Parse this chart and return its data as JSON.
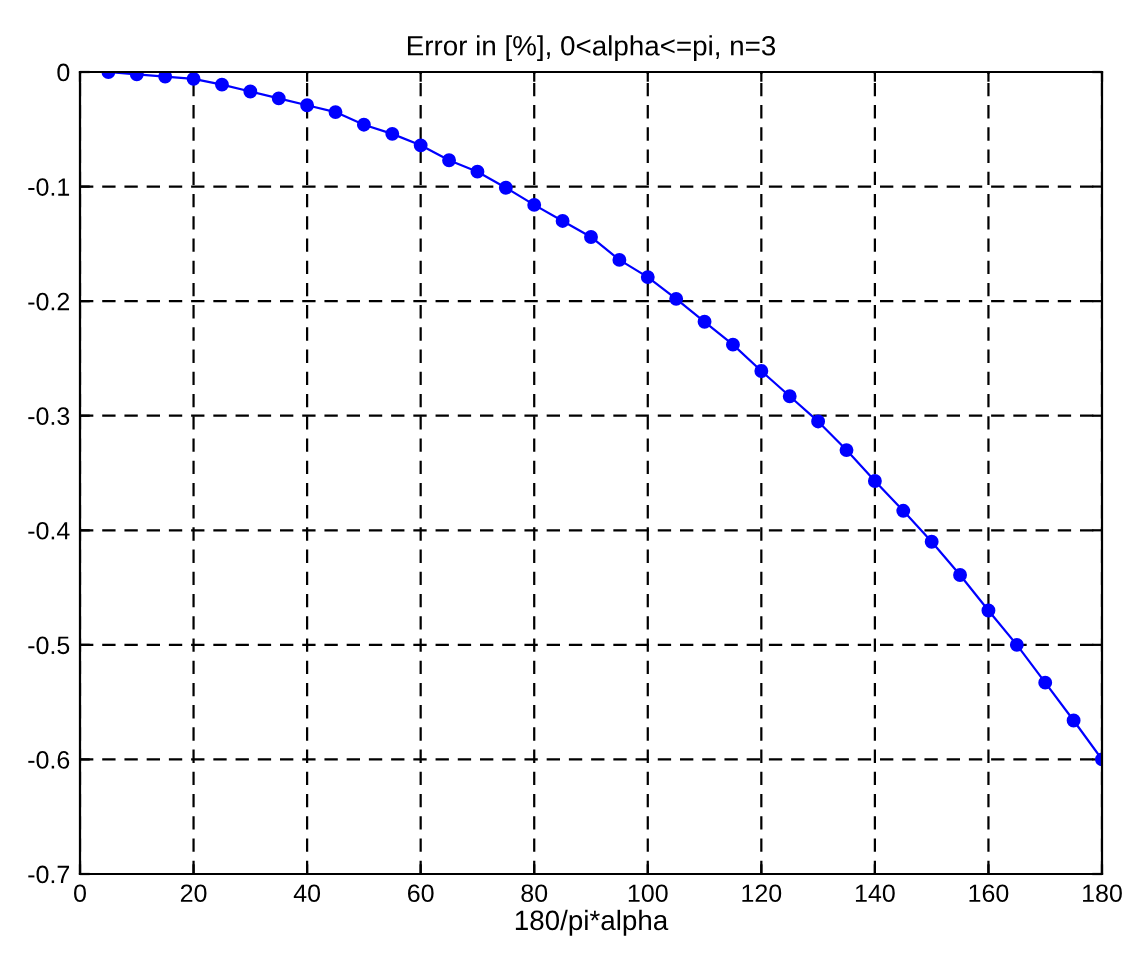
{
  "chart_data": {
    "type": "line",
    "title": "Error in [%], 0<alpha<=pi, n=3",
    "xlabel": "180/pi*alpha",
    "x": [
      5,
      10,
      15,
      20,
      25,
      30,
      35,
      40,
      45,
      50,
      55,
      60,
      65,
      70,
      75,
      80,
      85,
      90,
      95,
      100,
      105,
      110,
      115,
      120,
      125,
      130,
      135,
      140,
      145,
      150,
      155,
      160,
      165,
      170,
      175,
      180
    ],
    "series": [
      {
        "color": "#0000ff",
        "values": [
          0,
          -0.002,
          -0.004,
          -0.006,
          -0.011,
          -0.017,
          -0.023,
          -0.029,
          -0.035,
          -0.046,
          -0.054,
          -0.064,
          -0.077,
          -0.087,
          -0.101,
          -0.116,
          -0.13,
          -0.144,
          -0.164,
          -0.179,
          -0.198,
          -0.218,
          -0.238,
          -0.261,
          -0.283,
          -0.305,
          -0.33,
          -0.357,
          -0.383,
          -0.41,
          -0.439,
          -0.47,
          -0.5,
          -0.533,
          -0.566,
          -0.6
        ]
      }
    ],
    "xlim": [
      0,
      180
    ],
    "xticks": [
      0,
      20,
      40,
      60,
      80,
      100,
      120,
      140,
      160,
      180
    ],
    "ylim": [
      -0.7,
      0
    ],
    "yticks": [
      -0.7,
      -0.6,
      -0.5,
      -0.4,
      -0.3,
      -0.2,
      -0.1,
      0
    ],
    "grid": true,
    "marker": "circle",
    "line_style": "solid"
  }
}
